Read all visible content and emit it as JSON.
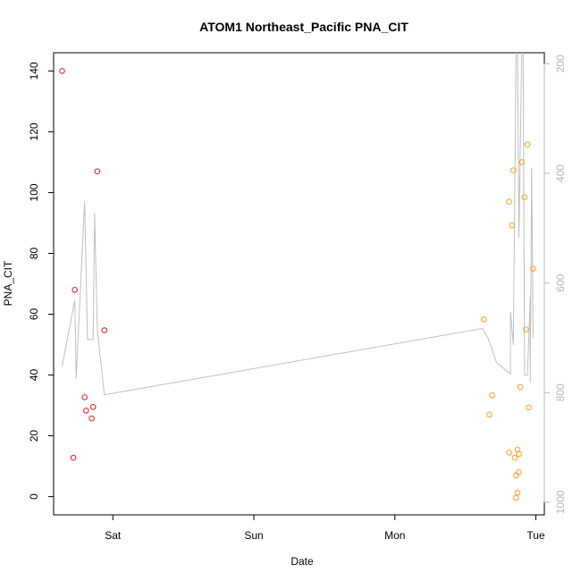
{
  "chart_data": {
    "type": "scatter",
    "title": "ATOM1 Northeast_Pacific PNA_CIT",
    "xlabel": "Date",
    "ylabel": "PNA_CIT",
    "x_axis": {
      "unit": "days",
      "range": [
        -0.42,
        3.06
      ],
      "ticks": [
        {
          "value": 0,
          "label": "Sat"
        },
        {
          "value": 1,
          "label": "Sun"
        },
        {
          "value": 2,
          "label": "Mon"
        },
        {
          "value": 3,
          "label": "Tue"
        }
      ]
    },
    "y_axis": {
      "range": [
        -6,
        146
      ],
      "ticks": [
        0,
        20,
        40,
        60,
        80,
        100,
        120,
        140
      ]
    },
    "y2_axis": {
      "range": [
        1023,
        180
      ],
      "ticks": [
        200,
        400,
        600,
        800,
        1000
      ],
      "color": "#b8b8b8"
    },
    "series": [
      {
        "type": "points",
        "color": "#e41a1c",
        "points": [
          {
            "x": -0.36,
            "y": 140
          },
          {
            "x": -0.28,
            "y": 12.8
          },
          {
            "x": -0.27,
            "y": 68
          },
          {
            "x": -0.2,
            "y": 32.7
          },
          {
            "x": -0.19,
            "y": 28.3
          },
          {
            "x": -0.15,
            "y": 25.7
          },
          {
            "x": -0.14,
            "y": 29.5
          },
          {
            "x": -0.11,
            "y": 107
          },
          {
            "x": -0.06,
            "y": 54.7
          }
        ]
      },
      {
        "type": "points",
        "color": "#ff9f1c",
        "points": [
          {
            "x": 2.63,
            "y": 58.3
          },
          {
            "x": 2.67,
            "y": 27
          },
          {
            "x": 2.69,
            "y": 33.3
          },
          {
            "x": 2.81,
            "y": 97
          },
          {
            "x": 2.81,
            "y": 14.5
          },
          {
            "x": 2.83,
            "y": 89.2
          },
          {
            "x": 2.84,
            "y": 107.3
          },
          {
            "x": 2.85,
            "y": 12.8
          },
          {
            "x": 2.86,
            "y": -0.4
          },
          {
            "x": 2.86,
            "y": 7
          },
          {
            "x": 2.87,
            "y": 15.5
          },
          {
            "x": 2.87,
            "y": 1.3
          },
          {
            "x": 2.88,
            "y": 14
          },
          {
            "x": 2.88,
            "y": 8
          },
          {
            "x": 2.89,
            "y": 36
          },
          {
            "x": 2.9,
            "y": 110
          },
          {
            "x": 2.92,
            "y": 98.5
          },
          {
            "x": 2.93,
            "y": 55
          },
          {
            "x": 2.95,
            "y": 29.3
          },
          {
            "x": 2.94,
            "y": 115.8
          },
          {
            "x": 2.98,
            "y": 75
          }
        ]
      },
      {
        "type": "line",
        "axis": "y2",
        "color": "#c0c0c0",
        "points": [
          {
            "x": -0.36,
            "y": 752
          },
          {
            "x": -0.27,
            "y": 632
          },
          {
            "x": -0.26,
            "y": 774
          },
          {
            "x": -0.2,
            "y": 450
          },
          {
            "x": -0.18,
            "y": 703
          },
          {
            "x": -0.14,
            "y": 703
          },
          {
            "x": -0.13,
            "y": 472
          },
          {
            "x": -0.11,
            "y": 685
          },
          {
            "x": -0.06,
            "y": 804
          },
          {
            "x": 2.62,
            "y": 683
          },
          {
            "x": 2.66,
            "y": 700
          },
          {
            "x": 2.72,
            "y": 745
          },
          {
            "x": 2.82,
            "y": 766
          },
          {
            "x": 2.82,
            "y": 653
          },
          {
            "x": 2.84,
            "y": 713
          },
          {
            "x": 2.86,
            "y": 170
          },
          {
            "x": 2.87,
            "y": 170
          },
          {
            "x": 2.88,
            "y": 518
          },
          {
            "x": 2.9,
            "y": 170
          },
          {
            "x": 2.91,
            "y": 170
          },
          {
            "x": 2.92,
            "y": 768
          },
          {
            "x": 2.94,
            "y": 768
          },
          {
            "x": 2.96,
            "y": 625
          },
          {
            "x": 2.96,
            "y": 782
          },
          {
            "x": 2.97,
            "y": 390
          },
          {
            "x": 2.98,
            "y": 700
          }
        ]
      }
    ]
  }
}
